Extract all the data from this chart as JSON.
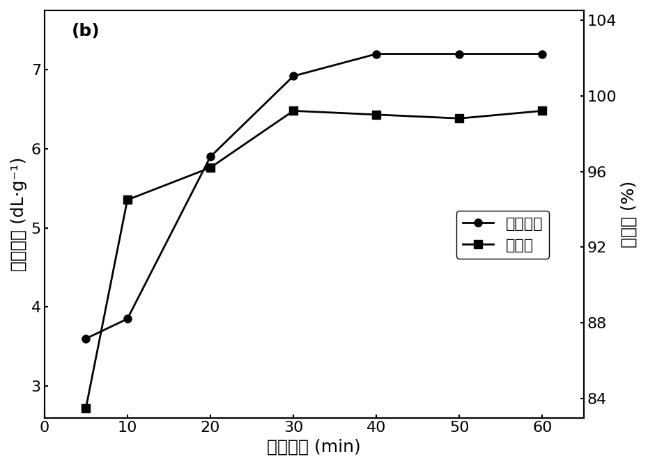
{
  "x": [
    5,
    10,
    20,
    30,
    40,
    50,
    60
  ],
  "viscosity": [
    3.6,
    3.85,
    5.9,
    6.92,
    7.2,
    7.2,
    7.2
  ],
  "conversion": [
    83.5,
    94.5,
    96.2,
    99.2,
    99.0,
    98.8,
    99.2
  ],
  "left_ylabel": "特性粘度 (dL·g⁻¹)",
  "right_ylabel": "转化率 (%)",
  "xlabel": "引发时间 (min)",
  "panel_label": "(b)",
  "left_ylim": [
    2.6,
    7.75
  ],
  "left_yticks": [
    3,
    4,
    5,
    6,
    7
  ],
  "right_ylim": [
    83.0,
    104.5
  ],
  "right_yticks": [
    84,
    88,
    92,
    96,
    100,
    104
  ],
  "xlim": [
    0,
    65
  ],
  "xticks": [
    0,
    10,
    20,
    30,
    40,
    50,
    60
  ],
  "legend_viscosity": "特性粘度",
  "legend_conversion": "转化率",
  "line_color": "#000000",
  "marker_circle": "o",
  "marker_square": "s",
  "marker_size": 8,
  "line_width": 2.0,
  "font_size_label": 18,
  "font_size_tick": 16,
  "font_size_legend": 16,
  "font_size_panel": 18
}
